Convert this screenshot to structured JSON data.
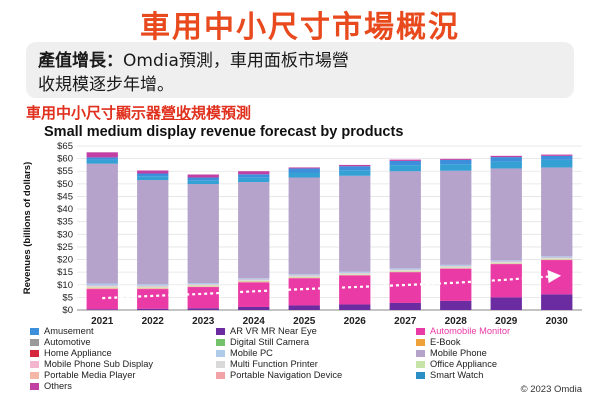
{
  "header": {
    "title": "車用中小尺寸市場概況",
    "subtitle_bold": "產值增長：",
    "subtitle_rest": "Omdia預測，車用面板市場營",
    "subtitle_line2": "收規模逐步年增。",
    "chart_heading_pre": "車用中小尺寸顯示器",
    "chart_heading_ul": "營收",
    "chart_heading_post": "規模預測"
  },
  "copyright": "© 2023 Omdia",
  "chart_data": {
    "type": "bar",
    "stacked": true,
    "title": "Small medium display revenue forecast by products",
    "ylabel": "Revenues (billions of dollars)",
    "xlabel": "",
    "ylim": [
      0,
      65
    ],
    "yticks": [
      0,
      5,
      10,
      15,
      20,
      25,
      30,
      35,
      40,
      45,
      50,
      55,
      60,
      65
    ],
    "ytick_labels": [
      "$0",
      "$5",
      "$10",
      "$15",
      "$20",
      "$25",
      "$30",
      "$35",
      "$40",
      "$45",
      "$50",
      "$55",
      "$60",
      "$65"
    ],
    "categories": [
      "2021",
      "2022",
      "2023",
      "2024",
      "2025",
      "2026",
      "2027",
      "2028",
      "2029",
      "2030"
    ],
    "series": [
      {
        "name": "AR VR MR Near Eye",
        "color": "#6a2ca0",
        "values": [
          0.3,
          0.5,
          0.7,
          1.2,
          1.8,
          2.2,
          2.8,
          3.6,
          5.0,
          6.2
        ]
      },
      {
        "name": "Automobile Monitor",
        "color": "#ea3aa6",
        "values": [
          8.0,
          7.8,
          8.4,
          9.8,
          10.8,
          11.5,
          12.2,
          12.8,
          13.2,
          13.6
        ]
      },
      {
        "name": "Portable Media Player",
        "color": "#f6b8a6",
        "values": [
          0.5,
          0.4,
          0.3,
          0.3,
          0.3,
          0.2,
          0.2,
          0.2,
          0.2,
          0.2
        ]
      },
      {
        "name": "Office Appliance",
        "color": "#c6e3a8",
        "values": [
          0.3,
          0.3,
          0.3,
          0.3,
          0.3,
          0.3,
          0.3,
          0.3,
          0.3,
          0.3
        ]
      },
      {
        "name": "Multi Function Printer",
        "color": "#d9d9d9",
        "values": [
          0.3,
          0.3,
          0.3,
          0.3,
          0.3,
          0.3,
          0.3,
          0.3,
          0.3,
          0.3
        ]
      },
      {
        "name": "Mobile Phone Sub Display",
        "color": "#f3b6cf",
        "values": [
          0.3,
          0.3,
          0.2,
          0.2,
          0.2,
          0.2,
          0.2,
          0.2,
          0.2,
          0.2
        ]
      },
      {
        "name": "Mobile PC",
        "color": "#aecbe8",
        "values": [
          0.8,
          0.6,
          0.5,
          0.5,
          0.5,
          0.5,
          0.5,
          0.5,
          0.5,
          0.5
        ]
      },
      {
        "name": "Mobile Phone",
        "color": "#b6a3cc",
        "values": [
          47.5,
          41.3,
          39.2,
          38.1,
          38.3,
          38.0,
          38.5,
          37.3,
          36.4,
          35.2
        ]
      },
      {
        "name": "Smart Watch",
        "color": "#34a0d4",
        "values": [
          1.5,
          1.5,
          1.5,
          1.7,
          2.0,
          2.2,
          2.4,
          2.6,
          2.8,
          3.0
        ]
      },
      {
        "name": "Amusement",
        "color": "#3d8fdc",
        "values": [
          1.0,
          1.1,
          1.1,
          1.4,
          1.6,
          1.6,
          1.7,
          1.7,
          1.7,
          1.6
        ]
      },
      {
        "name": "Others",
        "color": "#c23fa3",
        "values": [
          2.0,
          1.2,
          1.2,
          1.2,
          0.4,
          0.5,
          0.5,
          0.4,
          0.5,
          0.5
        ]
      }
    ],
    "automotive_trend": {
      "name": "Automotive",
      "values": [
        4.7,
        5.6,
        6.4,
        7.4,
        8.3,
        9.1,
        9.9,
        10.8,
        12.0,
        13.5
      ]
    },
    "legend": [
      {
        "name": "Amusement",
        "color": "#3d8fdc"
      },
      {
        "name": "AR VR MR Near Eye",
        "color": "#6a2ca0"
      },
      {
        "name": "Automobile Monitor",
        "color": "#ea3aa6",
        "highlight": true
      },
      {
        "name": "Automotive",
        "color": "#9a9a9a"
      },
      {
        "name": "Digital Still Camera",
        "color": "#74c26a"
      },
      {
        "name": "E-Book",
        "color": "#f0a23a"
      },
      {
        "name": "Home Appliance",
        "color": "#d6263b"
      },
      {
        "name": "Mobile PC",
        "color": "#aecbe8"
      },
      {
        "name": "Mobile Phone",
        "color": "#b6a3cc"
      },
      {
        "name": "Mobile Phone Sub Display",
        "color": "#f3b6cf"
      },
      {
        "name": "Multi Function Printer",
        "color": "#d9d9d9"
      },
      {
        "name": "Office Appliance",
        "color": "#c6e3a8"
      },
      {
        "name": "Portable Media Player",
        "color": "#f6b8a6"
      },
      {
        "name": "Portable Navigation Device",
        "color": "#f2a3a8"
      },
      {
        "name": "Smart Watch",
        "color": "#2b8fc6"
      },
      {
        "name": "Others",
        "color": "#c23fa3"
      }
    ]
  }
}
